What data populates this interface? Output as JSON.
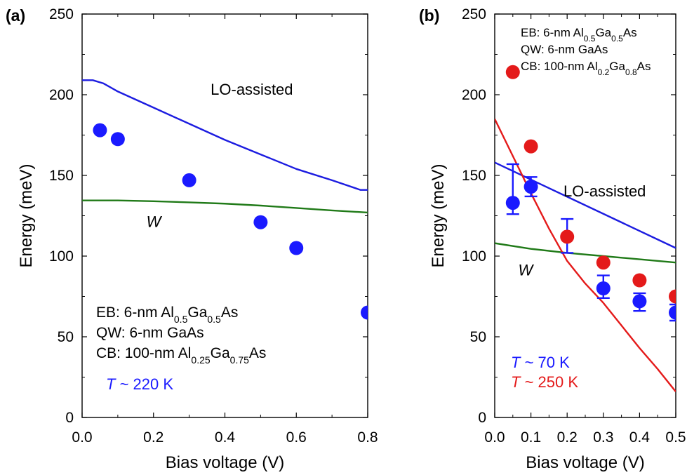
{
  "chart_data": [
    {
      "panel_label": "(a)",
      "type": "scatter",
      "xlabel": "Bias voltage (V)",
      "ylabel": "Energy (meV)",
      "xlim": [
        0.0,
        0.8
      ],
      "ylim": [
        0,
        250
      ],
      "xticks": [
        "0.0",
        "0.2",
        "0.4",
        "0.6",
        "0.8"
      ],
      "yticks": [
        "0",
        "50",
        "100",
        "150",
        "200",
        "250"
      ],
      "lines": [
        {
          "name": "LO-assisted",
          "color": "#1c1ce0",
          "x": [
            0.0,
            0.03,
            0.06,
            0.1,
            0.2,
            0.3,
            0.4,
            0.5,
            0.6,
            0.7,
            0.78,
            0.8
          ],
          "y": [
            209,
            209,
            207,
            202,
            192,
            182,
            172,
            163,
            154,
            147,
            141,
            141
          ]
        },
        {
          "name": "W",
          "color": "#207a18",
          "x": [
            0.0,
            0.1,
            0.2,
            0.3,
            0.4,
            0.5,
            0.6,
            0.7,
            0.8
          ],
          "y": [
            134.5,
            134.5,
            134,
            133.3,
            132.5,
            131.3,
            129.8,
            128.3,
            127
          ]
        }
      ],
      "points": [
        {
          "color": "#1a1aff",
          "x": [
            0.05,
            0.1,
            0.3,
            0.5,
            0.6,
            0.8
          ],
          "y": [
            178,
            172.5,
            147,
            121,
            105,
            65
          ]
        }
      ],
      "line_labels": [
        {
          "text": "LO-assisted",
          "x": 0.36,
          "y": 200,
          "italic": false
        },
        {
          "text": "W",
          "x": 0.18,
          "y": 118,
          "italic": true
        }
      ],
      "legend": {
        "lines": [
          {
            "parts": [
              [
                "EB: 6-nm Al",
                ""
              ],
              [
                "0.5",
                "sub"
              ],
              [
                "Ga",
                ""
              ],
              [
                "0.5",
                "sub"
              ],
              [
                "As",
                ""
              ]
            ]
          },
          {
            "parts": [
              [
                "QW: 6-nm GaAs",
                ""
              ]
            ]
          },
          {
            "parts": [
              [
                "CB: 100-nm Al",
                ""
              ],
              [
                "0.25",
                "sub"
              ],
              [
                "Ga",
                ""
              ],
              [
                "0.75",
                "sub"
              ],
              [
                "As",
                ""
              ]
            ]
          }
        ],
        "temperatures": [
          {
            "symbol": "T",
            "text": " ~ 220 K",
            "color": "#1a1aff"
          }
        ]
      }
    },
    {
      "panel_label": "(b)",
      "type": "scatter",
      "xlabel": "Bias voltage (V)",
      "ylabel": "Energy (meV)",
      "xlim": [
        0.0,
        0.5
      ],
      "ylim": [
        0,
        250
      ],
      "xticks": [
        "0.0",
        "0.1",
        "0.2",
        "0.3",
        "0.4",
        "0.5"
      ],
      "yticks": [
        "0",
        "50",
        "100",
        "150",
        "200",
        "250"
      ],
      "lines": [
        {
          "name": "LO-assisted",
          "color": "#1c1ce0",
          "x": [
            0.0,
            0.5
          ],
          "y": [
            158,
            105
          ]
        },
        {
          "name": "W",
          "color": "#207a18",
          "x": [
            0.0,
            0.1,
            0.2,
            0.3,
            0.4,
            0.5
          ],
          "y": [
            108,
            104.5,
            102,
            100,
            98,
            96
          ]
        },
        {
          "name": "",
          "color": "#e41a1a",
          "x": [
            0.0,
            0.05,
            0.1,
            0.15,
            0.2,
            0.25,
            0.3,
            0.35,
            0.4,
            0.45,
            0.5
          ],
          "y": [
            185,
            162,
            139,
            117,
            97,
            83,
            71,
            57,
            43,
            30,
            16
          ]
        }
      ],
      "points": [
        {
          "color": "#e41a1a",
          "x": [
            0.05,
            0.1,
            0.2,
            0.3,
            0.4,
            0.5
          ],
          "y": [
            214,
            168,
            112,
            96,
            85,
            75
          ]
        },
        {
          "color": "#1a1aff",
          "x": [
            0.05,
            0.1,
            0.3,
            0.4,
            0.5
          ],
          "y": [
            133,
            143,
            80,
            72,
            65
          ],
          "err_low": [
            126,
            137,
            74,
            66,
            60
          ],
          "err_high": [
            157,
            149,
            88,
            77,
            70
          ]
        }
      ],
      "extra_errorbars": [
        {
          "color": "#1a1aff",
          "x": 0.2,
          "low": 102,
          "high": 123
        }
      ],
      "line_labels": [
        {
          "text": "LO-assisted",
          "x": 0.19,
          "y": 137,
          "italic": false
        },
        {
          "text": "W",
          "x": 0.065,
          "y": 88,
          "italic": true
        }
      ],
      "legend": {
        "lines": [
          {
            "parts": [
              [
                "EB: 6-nm Al",
                ""
              ],
              [
                "0.5",
                "sub"
              ],
              [
                "Ga",
                ""
              ],
              [
                "0.5",
                "sub"
              ],
              [
                "As",
                ""
              ]
            ]
          },
          {
            "parts": [
              [
                "QW: 6-nm GaAs",
                ""
              ]
            ]
          },
          {
            "parts": [
              [
                "CB: 100-nm Al",
                ""
              ],
              [
                "0.2",
                "sub"
              ],
              [
                "Ga",
                ""
              ],
              [
                "0.8",
                "sub"
              ],
              [
                "As",
                ""
              ]
            ]
          }
        ],
        "temperatures": [
          {
            "symbol": "T",
            "text": " ~ 70 K",
            "color": "#1a1aff"
          },
          {
            "symbol": "T",
            "text": " ~ 250 K",
            "color": "#e41a1a"
          }
        ]
      }
    }
  ]
}
